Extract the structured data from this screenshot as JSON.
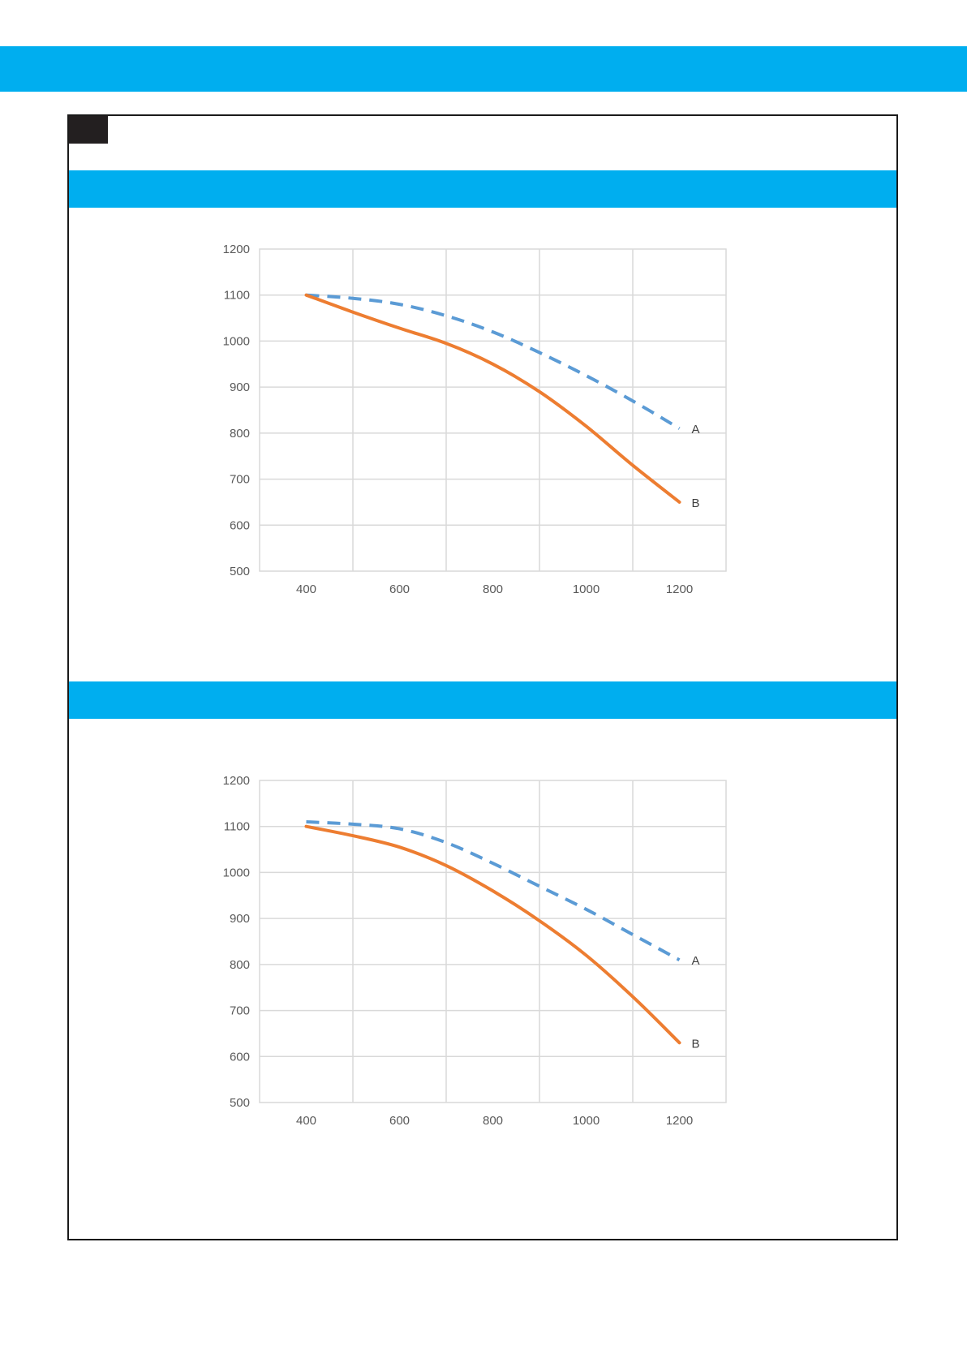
{
  "colors": {
    "banner": "#00aeef",
    "tab": "#231f20",
    "frame": "#1a1a1a",
    "grid": "#d9d9d9",
    "tick_text": "#595959",
    "series_a": "#5b9bd5",
    "series_b": "#ed7d31"
  },
  "chart_data": [
    {
      "type": "line",
      "xlim": [
        300,
        1300
      ],
      "ylim": [
        500,
        1200
      ],
      "xticks": [
        400,
        600,
        800,
        1000,
        1200
      ],
      "yticks": [
        500,
        600,
        700,
        800,
        900,
        1000,
        1100,
        1200
      ],
      "grid": true,
      "series": [
        {
          "name": "A",
          "style": "dashed",
          "x": [
            400,
            500,
            600,
            700,
            800,
            900,
            1000,
            1100,
            1200
          ],
          "y": [
            1100,
            1093,
            1080,
            1055,
            1020,
            975,
            925,
            870,
            810
          ]
        },
        {
          "name": "B",
          "style": "solid",
          "x": [
            400,
            500,
            600,
            700,
            800,
            900,
            1000,
            1100,
            1200
          ],
          "y": [
            1100,
            1063,
            1028,
            995,
            950,
            890,
            815,
            730,
            650
          ]
        }
      ]
    },
    {
      "type": "line",
      "xlim": [
        300,
        1300
      ],
      "ylim": [
        500,
        1200
      ],
      "xticks": [
        400,
        600,
        800,
        1000,
        1200
      ],
      "yticks": [
        500,
        600,
        700,
        800,
        900,
        1000,
        1100,
        1200
      ],
      "grid": true,
      "series": [
        {
          "name": "A",
          "style": "dashed",
          "x": [
            400,
            500,
            600,
            700,
            800,
            900,
            1000,
            1100,
            1200
          ],
          "y": [
            1110,
            1105,
            1095,
            1065,
            1020,
            970,
            920,
            865,
            810
          ]
        },
        {
          "name": "B",
          "style": "solid",
          "x": [
            400,
            500,
            600,
            700,
            800,
            900,
            1000,
            1100,
            1200
          ],
          "y": [
            1100,
            1080,
            1055,
            1015,
            960,
            895,
            820,
            730,
            630
          ]
        }
      ]
    }
  ]
}
